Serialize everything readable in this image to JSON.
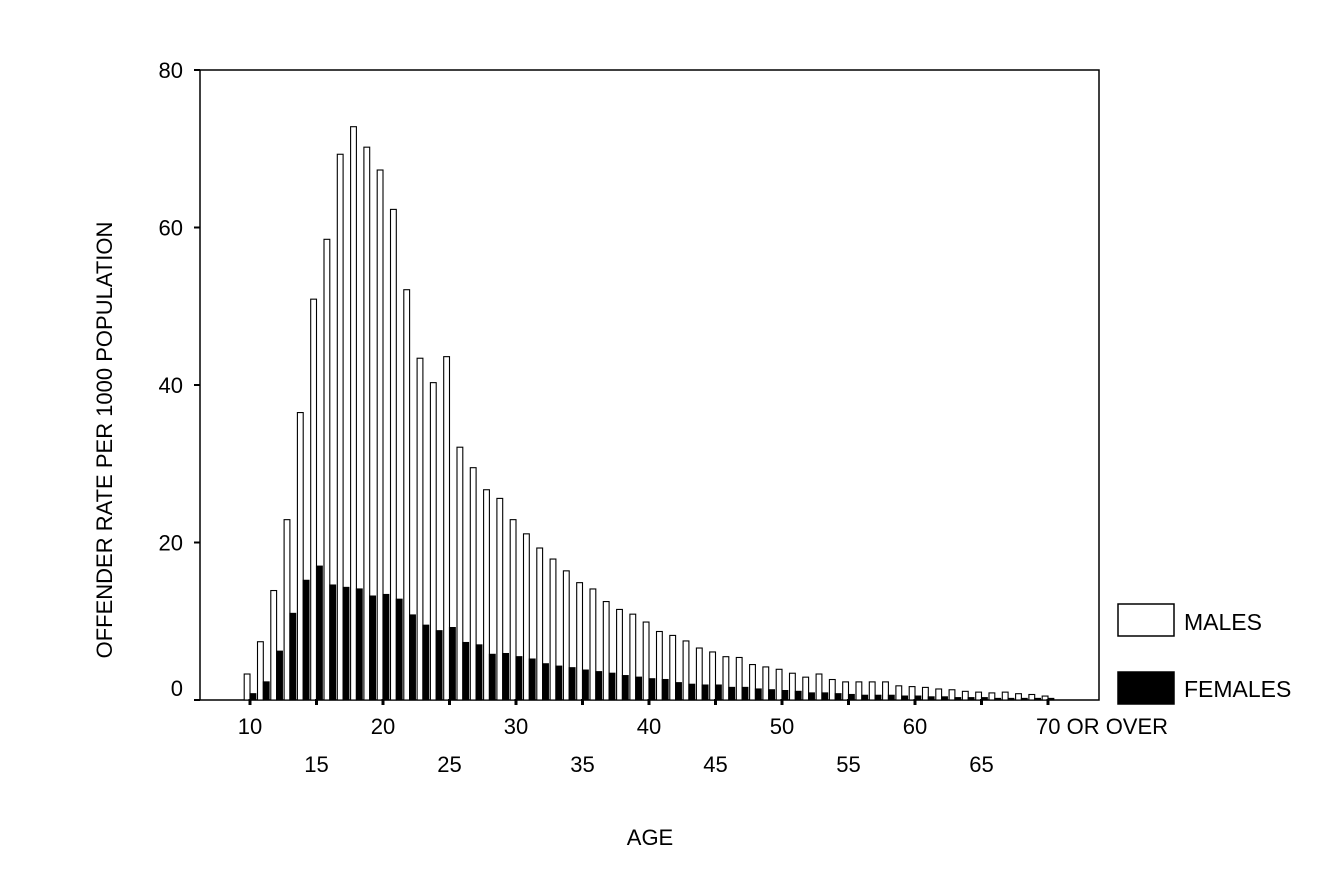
{
  "chart_data": {
    "type": "bar",
    "title": "",
    "xlabel": "AGE",
    "ylabel": "OFFENDER RATE PER 1000 POPULATION",
    "ylim": [
      0,
      80
    ],
    "y_ticks": [
      "0",
      "20",
      "40",
      "60",
      "80"
    ],
    "x_tick_labels_top": [
      "10",
      "20",
      "30",
      "40",
      "50",
      "60",
      "70 OR OVER"
    ],
    "x_tick_labels_bottom": [
      "15",
      "25",
      "35",
      "45",
      "55",
      "65"
    ],
    "legend_position": "right",
    "categories": [
      "10",
      "11",
      "12",
      "13",
      "14",
      "15",
      "16",
      "17",
      "18",
      "19",
      "20",
      "21",
      "22",
      "23",
      "24",
      "25",
      "26",
      "27",
      "28",
      "29",
      "30",
      "31",
      "32",
      "33",
      "34",
      "35",
      "36",
      "37",
      "38",
      "39",
      "40",
      "41",
      "42",
      "43",
      "44",
      "45",
      "46",
      "47",
      "48",
      "49",
      "50",
      "51",
      "52",
      "53",
      "54",
      "55",
      "56",
      "57",
      "58",
      "59",
      "60",
      "61",
      "62",
      "63",
      "64",
      "65",
      "66",
      "67",
      "68",
      "69",
      "70 OR OVER"
    ],
    "series": [
      {
        "name": "MALES",
        "color": "#ffffff",
        "values": [
          3.3,
          7.4,
          13.9,
          22.9,
          36.5,
          50.9,
          58.5,
          69.3,
          72.8,
          70.2,
          67.3,
          62.3,
          52.1,
          43.4,
          40.3,
          43.6,
          32.1,
          29.5,
          26.7,
          25.6,
          22.9,
          21.1,
          19.3,
          17.9,
          16.4,
          14.9,
          14.1,
          12.5,
          11.5,
          10.9,
          9.9,
          8.7,
          8.2,
          7.5,
          6.6,
          6.1,
          5.5,
          5.4,
          4.5,
          4.2,
          3.9,
          3.4,
          2.9,
          3.3,
          2.6,
          2.3,
          2.3,
          2.3,
          2.3,
          1.8,
          1.7,
          1.6,
          1.4,
          1.3,
          1.1,
          1.0,
          0.9,
          1.0,
          0.8,
          0.7,
          0.5
        ]
      },
      {
        "name": "FEMALES",
        "color": "#000000",
        "values": [
          0.8,
          2.3,
          6.2,
          11.0,
          15.2,
          17.0,
          14.6,
          14.3,
          14.1,
          13.2,
          13.4,
          12.8,
          10.8,
          9.5,
          8.8,
          9.2,
          7.3,
          7.0,
          5.8,
          5.9,
          5.5,
          5.2,
          4.6,
          4.3,
          4.1,
          3.8,
          3.6,
          3.4,
          3.1,
          2.9,
          2.7,
          2.6,
          2.2,
          2.0,
          1.9,
          1.9,
          1.6,
          1.6,
          1.4,
          1.3,
          1.2,
          1.1,
          0.9,
          0.9,
          0.8,
          0.7,
          0.6,
          0.6,
          0.6,
          0.5,
          0.5,
          0.4,
          0.4,
          0.3,
          0.3,
          0.3,
          0.2,
          0.2,
          0.2,
          0.2,
          0.2
        ]
      }
    ]
  }
}
